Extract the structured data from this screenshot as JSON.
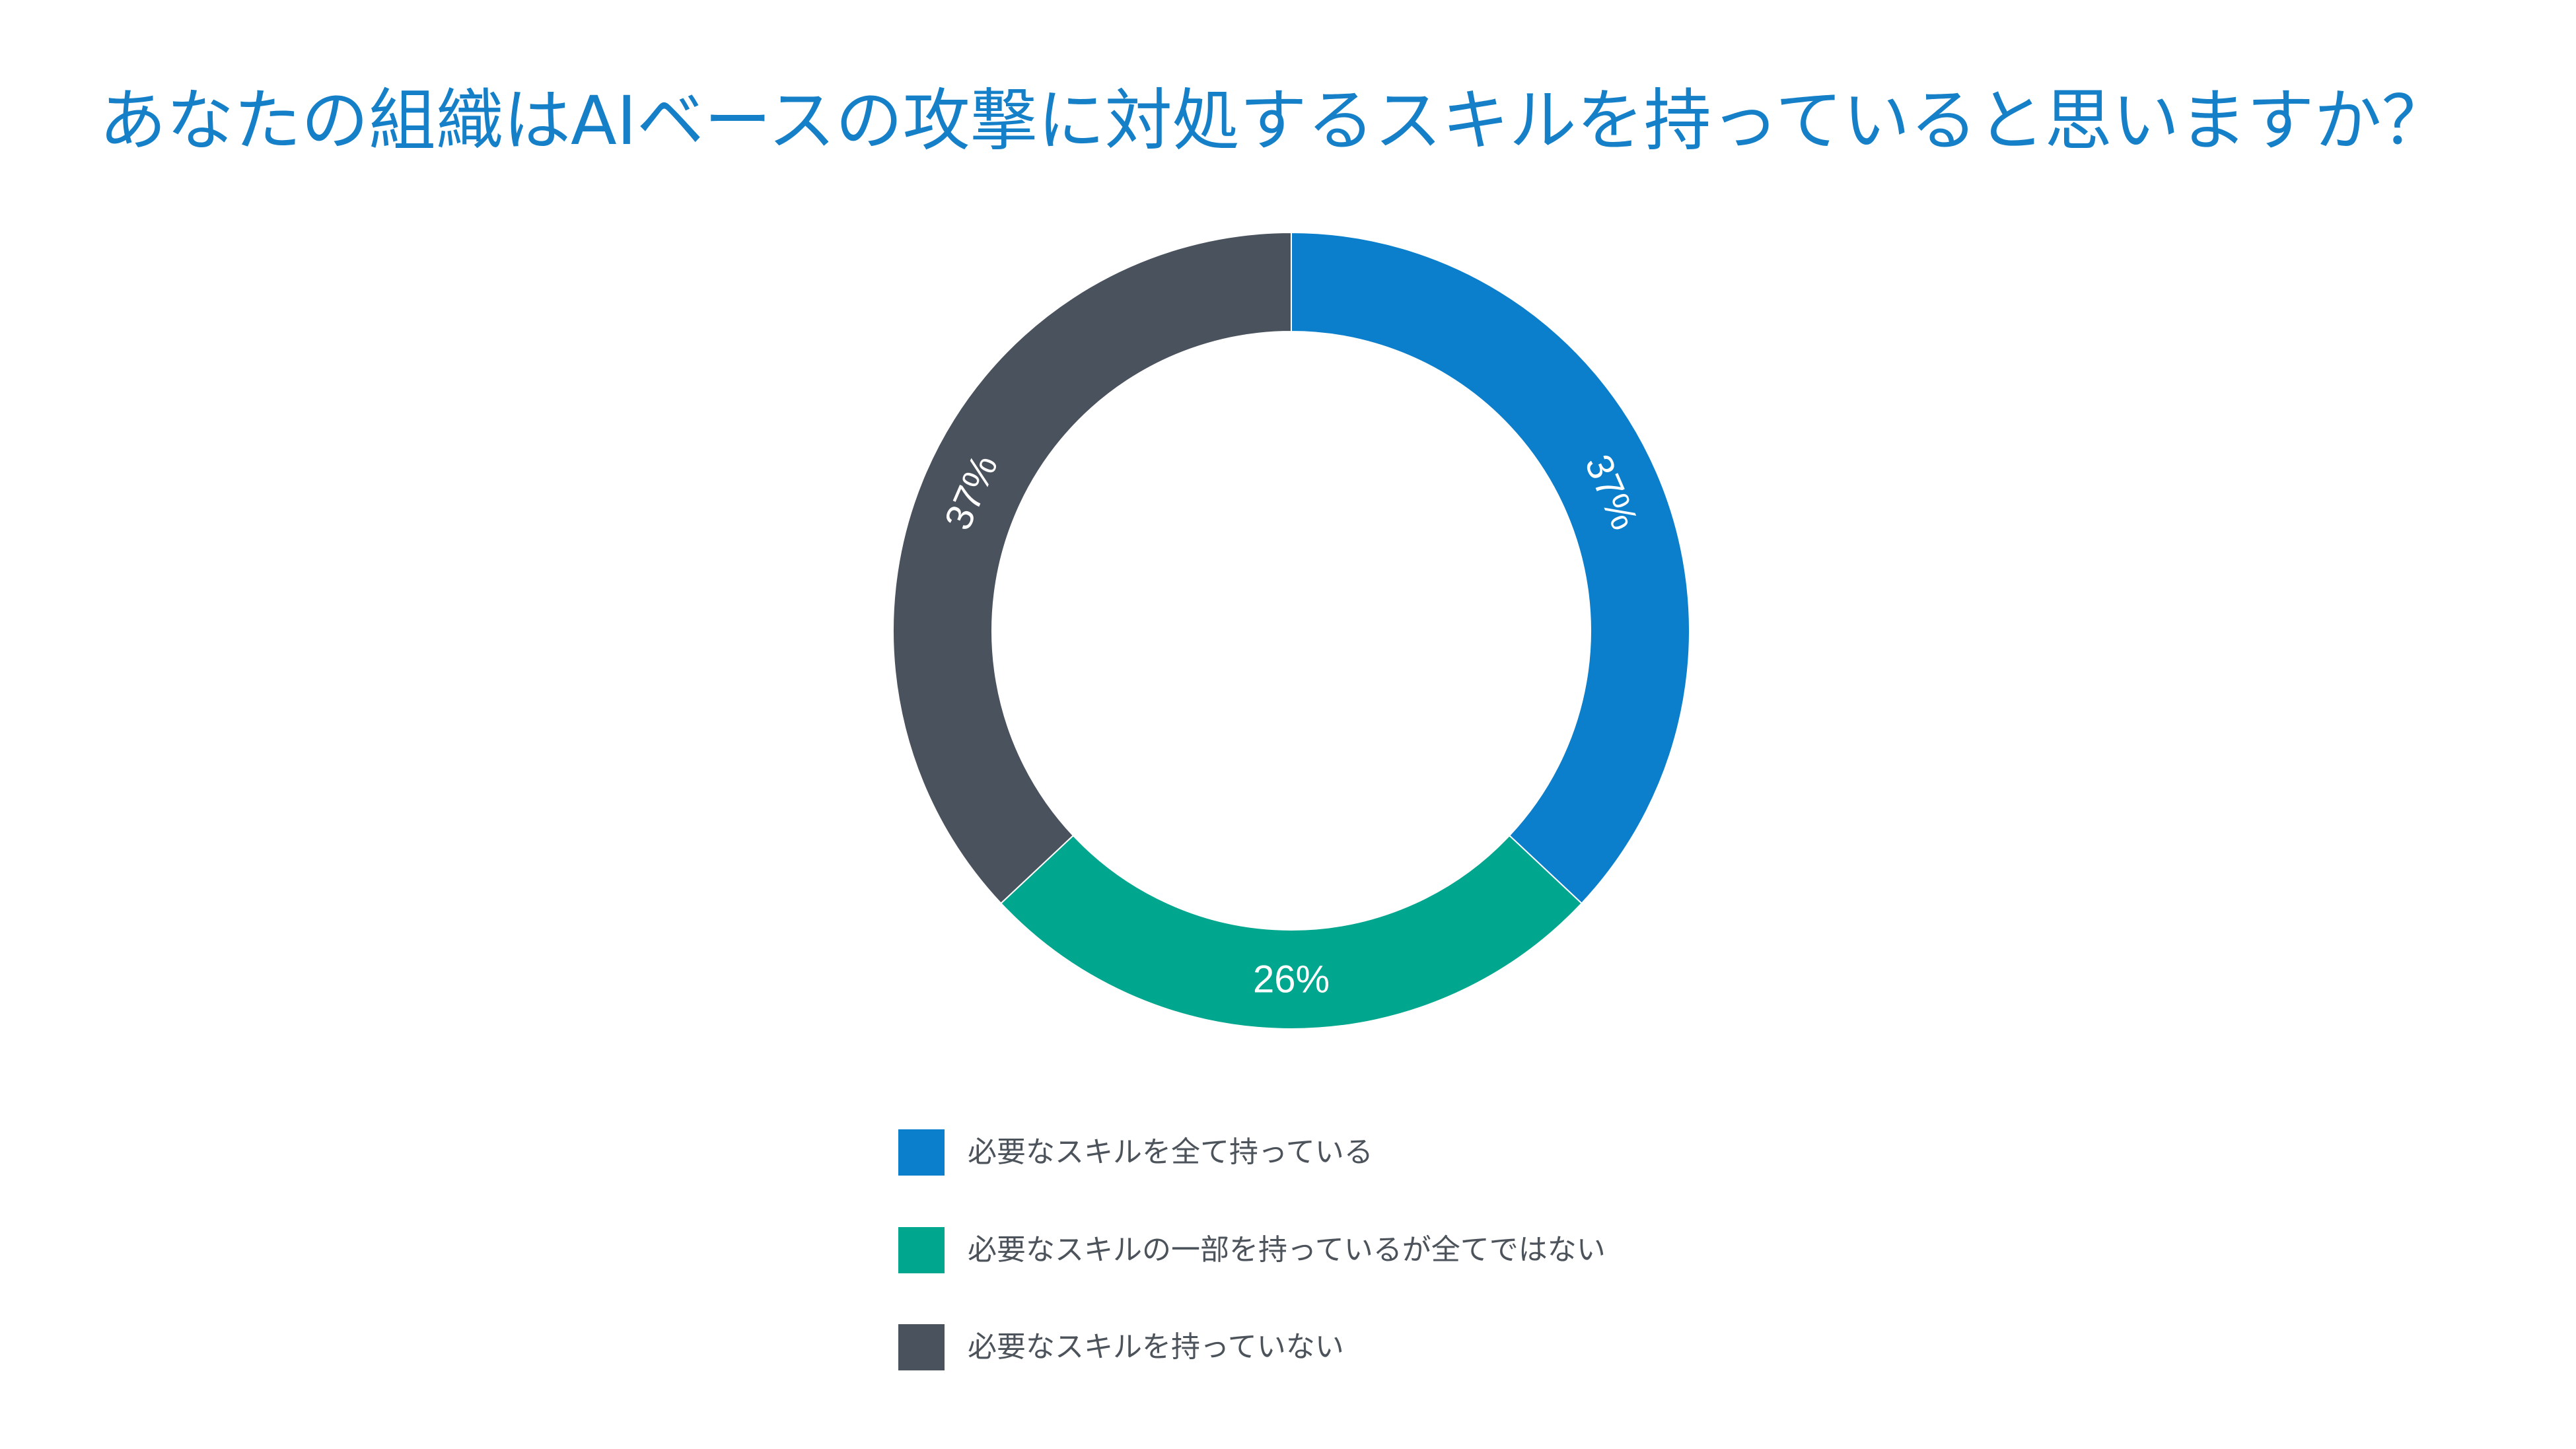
{
  "chart_data": {
    "type": "pie",
    "hole": true,
    "title": "あなたの組織はAIベースの攻撃に対処するスキルを持っていると思いますか？",
    "categories": [
      "必要なスキルを全て持っている",
      "必要なスキルの一部を持っているが全てではない",
      "必要なスキルを持っていない"
    ],
    "values": [
      37,
      26,
      37
    ],
    "data_labels": [
      "37%",
      "26%",
      "37%"
    ],
    "colors": [
      "#0b7fcb",
      "#00a78e",
      "#4a525d"
    ],
    "legend_position": "bottom"
  },
  "colors": {
    "title": "#1580c8",
    "legend_text": "#4d535b",
    "background": "#ffffff",
    "data_label": "#ffffff"
  }
}
